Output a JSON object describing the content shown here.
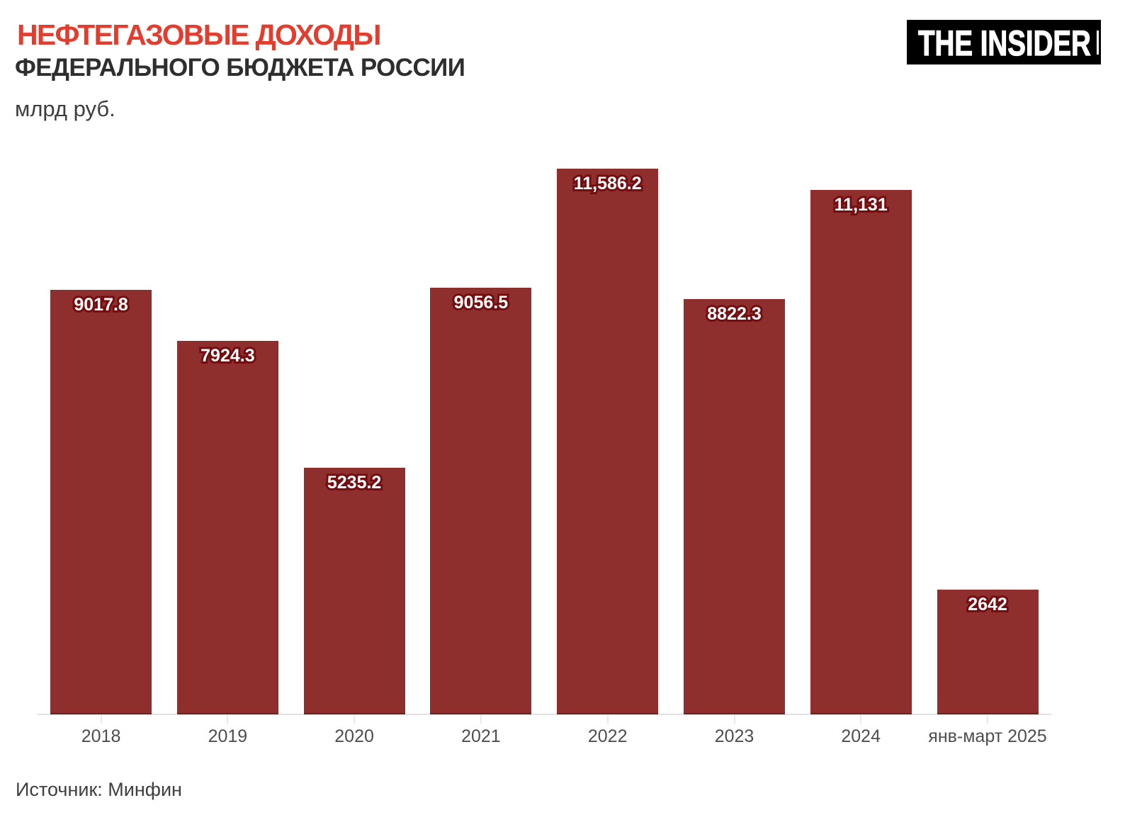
{
  "header": {
    "title_line1": "НЕФТЕГАЗОВЫЕ ДОХОДЫ",
    "title_line2": "ФЕДЕРАЛЬНОГО БЮДЖЕТА РОССИИ",
    "units": "млрд руб."
  },
  "logo": {
    "text": "THE INSIDER"
  },
  "footer": {
    "source": "Источник: Минфин"
  },
  "colors": {
    "bar": "#8e2f2e",
    "bar_bottom_edge": "#5f1916",
    "title_accent": "#e23e30",
    "title_dark": "#2e2e2e",
    "units_gray": "#3d3d3d",
    "value_label_fill": "#ffffff",
    "value_label_stroke": "#730d10",
    "axis_line": "#e2e2e2",
    "tick": "#e8e8e8",
    "year_label": "#4e4e4e",
    "source_gray": "#3f3f3f",
    "logo_bg": "#000000",
    "logo_fg": "#ffffff"
  },
  "chart_data": {
    "type": "bar",
    "title": "НЕФТЕГАЗОВЫЕ ДОХОДЫ ФЕДЕРАЛЬНОГО БЮДЖЕТА РОССИИ",
    "ylabel": "млрд руб.",
    "source": "Источник: Минфин",
    "categories": [
      "2018",
      "2019",
      "2020",
      "2021",
      "2022",
      "2023",
      "2024",
      "янв-март 2025"
    ],
    "values": [
      9017.8,
      7924.3,
      5235.2,
      9056.5,
      11586.2,
      8822.3,
      11131,
      2642
    ],
    "value_labels": [
      "9017.8",
      "7924.3",
      "5235.2",
      "9056.5",
      "11,586.2",
      "8822.3",
      "11,131",
      "2642"
    ],
    "ylim": [
      0,
      12250
    ],
    "grid": false,
    "legend": false
  }
}
